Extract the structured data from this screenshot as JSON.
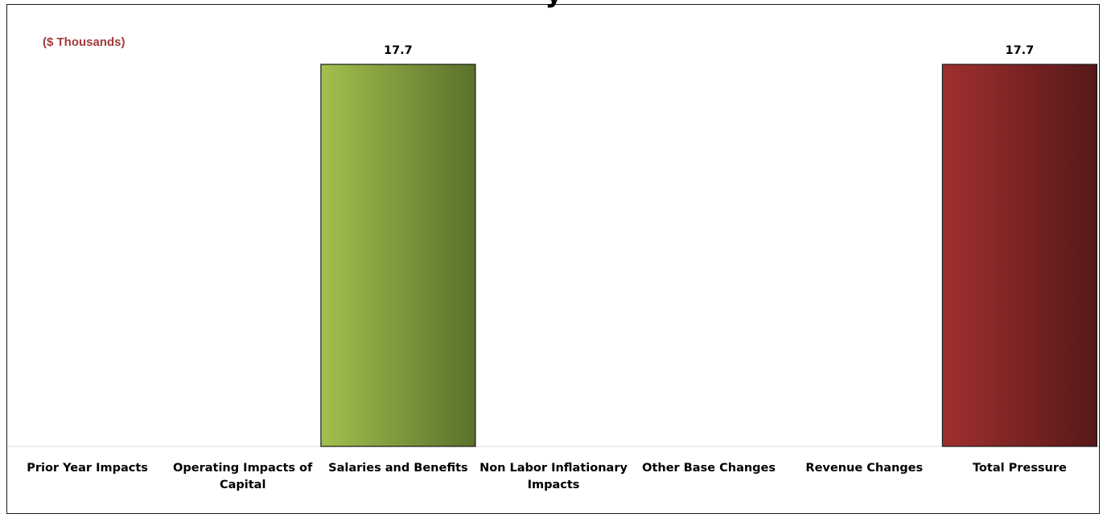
{
  "unit_label": "($ Thousands)",
  "colors": {
    "salaries_bar_light": "#a2c04e",
    "salaries_bar_dark": "#5a702c",
    "total_bar_light": "#a12f2f",
    "total_bar_dark": "#561819",
    "unit_label": "#a33a3a"
  },
  "chart_data": {
    "type": "bar",
    "title": "",
    "xlabel": "",
    "ylabel": "",
    "categories": [
      "Prior Year Impacts",
      "Operating Impacts of Capital",
      "Salaries and Benefits",
      "Non Labor Inflationary Impacts",
      "Other Base Changes",
      "Revenue Changes",
      "Total Pressure"
    ],
    "category_lines": [
      [
        "Prior Year Impacts"
      ],
      [
        "Operating Impacts of",
        "Capital"
      ],
      [
        "Salaries and Benefits"
      ],
      [
        "Non Labor Inflationary",
        "Impacts"
      ],
      [
        "Other Base Changes"
      ],
      [
        "Revenue Changes"
      ],
      [
        "Total Pressure"
      ]
    ],
    "values": [
      0,
      0,
      17.7,
      0,
      0,
      0,
      17.7
    ],
    "data_labels": [
      "",
      "",
      "17.7",
      "",
      "",
      "",
      "17.7"
    ],
    "bar_styles": [
      "none",
      "none",
      "green",
      "none",
      "none",
      "none",
      "red"
    ],
    "ylim": [
      0,
      17.7
    ],
    "grid": false,
    "legend": "none"
  }
}
